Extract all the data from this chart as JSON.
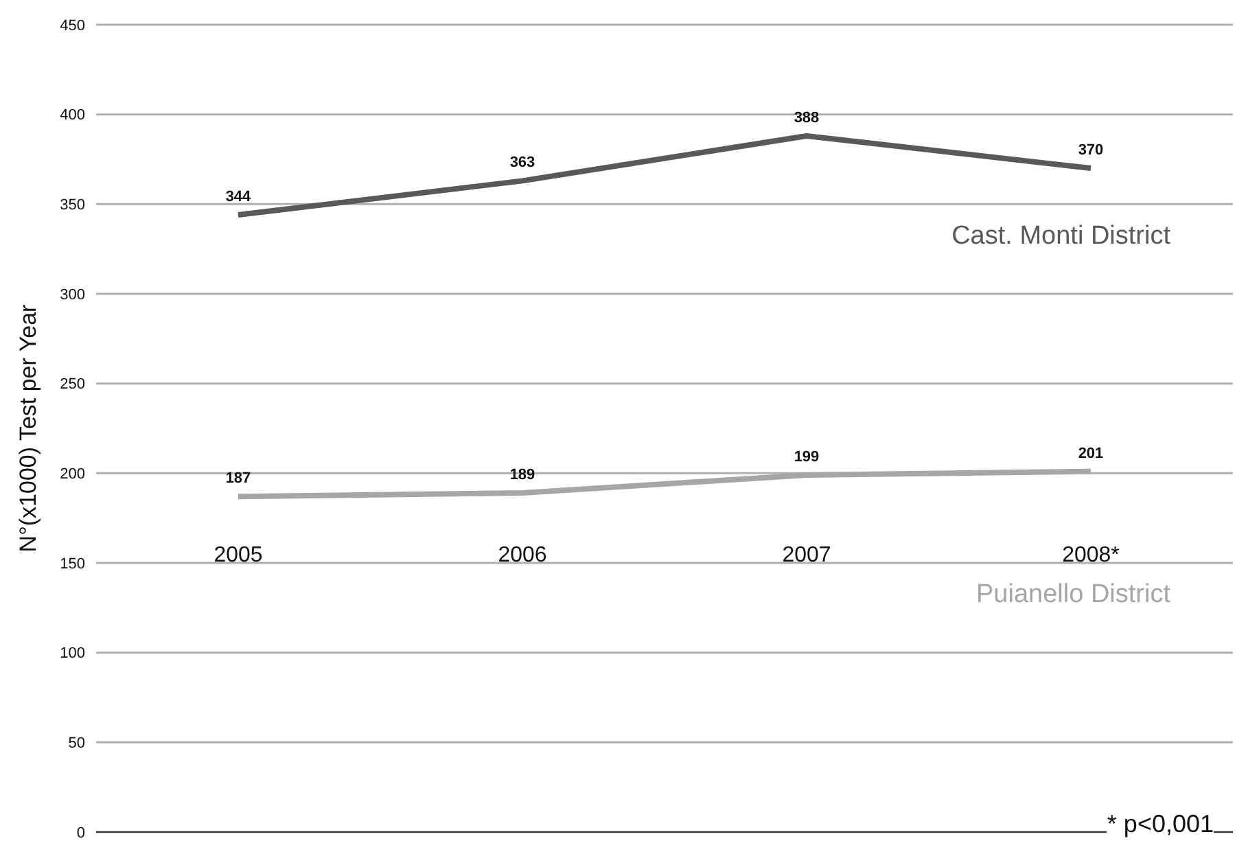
{
  "chart_data": {
    "type": "line",
    "ylabel": "N°(x1000) Test per Year",
    "categories": [
      "2005",
      "2006",
      "2007",
      "2008*"
    ],
    "series": [
      {
        "name": "Cast. Monti District",
        "color": "#595959",
        "values": [
          344,
          363,
          388,
          370
        ]
      },
      {
        "name": "Puianello District",
        "color": "#a6a6a6",
        "values": [
          187,
          189,
          199,
          201
        ]
      }
    ],
    "ylim": [
      0,
      450
    ],
    "yticks": [
      0,
      50,
      100,
      150,
      200,
      250,
      300,
      350,
      400,
      450
    ],
    "grid": "y",
    "legend": false,
    "marker": "none",
    "line_style": "solid",
    "data_labels": true,
    "annotations": [
      "* p<0,001"
    ]
  }
}
